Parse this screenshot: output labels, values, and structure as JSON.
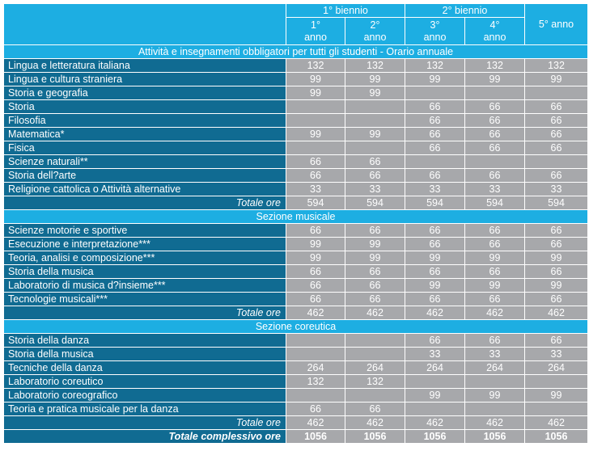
{
  "header": {
    "group1": "1° biennio",
    "group2": "2° biennio",
    "year5": "5° anno",
    "years": [
      {
        "n": "1°",
        "unit": "anno"
      },
      {
        "n": "2°",
        "unit": "anno"
      },
      {
        "n": "3°",
        "unit": "anno"
      },
      {
        "n": "4°",
        "unit": "anno"
      }
    ]
  },
  "sections": [
    {
      "title": "Attività e insegnamenti obbligatori per tutti gli studenti - Orario annuale",
      "rows": [
        {
          "label": "Lingua e letteratura italiana",
          "v": [
            "132",
            "132",
            "132",
            "132",
            "132"
          ]
        },
        {
          "label": "Lingua e cultura straniera",
          "v": [
            "99",
            "99",
            "99",
            "99",
            "99"
          ]
        },
        {
          "label": "Storia e geografia",
          "v": [
            "99",
            "99",
            "",
            "",
            ""
          ]
        },
        {
          "label": "Storia",
          "v": [
            "",
            "",
            "66",
            "66",
            "66"
          ]
        },
        {
          "label": "Filosofia",
          "v": [
            "",
            "",
            "66",
            "66",
            "66"
          ]
        },
        {
          "label": "Matematica*",
          "v": [
            "99",
            "99",
            "66",
            "66",
            "66"
          ]
        },
        {
          "label": "Fisica",
          "v": [
            "",
            "",
            "66",
            "66",
            "66"
          ]
        },
        {
          "label": "Scienze naturali**",
          "v": [
            "66",
            "66",
            "",
            "",
            ""
          ]
        },
        {
          "label": "Storia dell?arte",
          "v": [
            "66",
            "66",
            "66",
            "66",
            "66"
          ]
        },
        {
          "label": "Religione cattolica o Attività alternative",
          "v": [
            "33",
            "33",
            "33",
            "33",
            "33"
          ]
        }
      ],
      "total": {
        "label": "Totale ore",
        "v": [
          "594",
          "594",
          "594",
          "594",
          "594"
        ]
      }
    },
    {
      "title": "Sezione musicale",
      "rows": [
        {
          "label": "Scienze motorie e sportive",
          "v": [
            "66",
            "66",
            "66",
            "66",
            "66"
          ]
        },
        {
          "label": "Esecuzione e interpretazione***",
          "v": [
            "99",
            "99",
            "66",
            "66",
            "66"
          ]
        },
        {
          "label": "Teoria, analisi e composizione***",
          "v": [
            "99",
            "99",
            "99",
            "99",
            "99"
          ]
        },
        {
          "label": "Storia della musica",
          "v": [
            "66",
            "66",
            "66",
            "66",
            "66"
          ]
        },
        {
          "label": "Laboratorio di musica d?insieme***",
          "v": [
            "66",
            "66",
            "99",
            "99",
            "99"
          ]
        },
        {
          "label": "Tecnologie musicali***",
          "v": [
            "66",
            "66",
            "66",
            "66",
            "66"
          ]
        }
      ],
      "total": {
        "label": "Totale ore",
        "v": [
          "462",
          "462",
          "462",
          "462",
          "462"
        ]
      }
    },
    {
      "title": "Sezione coreutica",
      "rows": [
        {
          "label": "Storia della danza",
          "v": [
            "",
            "",
            "66",
            "66",
            "66"
          ]
        },
        {
          "label": "Storia della musica",
          "v": [
            "",
            "",
            "33",
            "33",
            "33"
          ]
        },
        {
          "label": "Tecniche della danza",
          "v": [
            "264",
            "264",
            "264",
            "264",
            "264"
          ]
        },
        {
          "label": "Laboratorio coreutico",
          "v": [
            "132",
            "132",
            "",
            "",
            ""
          ]
        },
        {
          "label": "Laboratorio coreografico",
          "v": [
            "",
            "",
            "99",
            "99",
            "99"
          ]
        },
        {
          "label": "Teoria e pratica musicale per la danza",
          "v": [
            "66",
            "66",
            "",
            "",
            ""
          ]
        }
      ],
      "total": {
        "label": "Totale ore",
        "v": [
          "462",
          "462",
          "462",
          "462",
          "462"
        ]
      }
    }
  ],
  "grand_total": {
    "label": "Totale complessivo ore",
    "v": [
      "1056",
      "1056",
      "1056",
      "1056",
      "1056"
    ]
  }
}
